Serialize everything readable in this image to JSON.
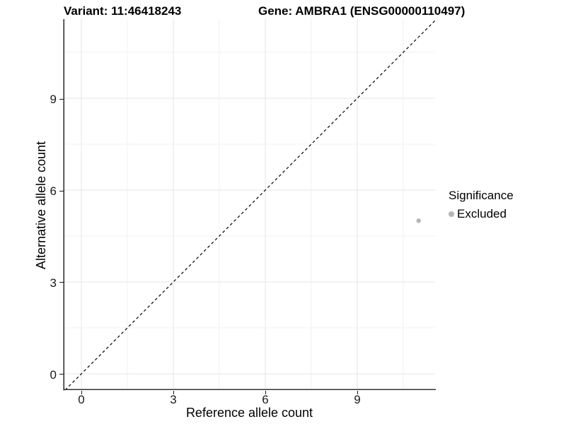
{
  "header": {
    "variant_title": "Variant: 11:46418243",
    "gene_title": "Gene: AMBRA1 (ENSG00000110497)"
  },
  "chart_data": {
    "type": "scatter",
    "xlabel": "Reference allele count",
    "ylabel": "Alternative allele count",
    "xlim": [
      -0.577,
      11.538
    ],
    "ylim": [
      -0.531,
      11.585
    ],
    "x_ticks": [
      0,
      3,
      6,
      9
    ],
    "y_ticks": [
      0,
      3,
      6,
      9
    ],
    "x_minor_ticks": [
      1.5,
      4.5,
      7.5,
      10.5
    ],
    "y_minor_ticks": [
      1.5,
      4.5,
      7.5,
      10.5
    ],
    "grid": "major+minor",
    "series": [
      {
        "name": "Excluded",
        "marker": "circle",
        "color": "#b5b5b5",
        "points": [
          {
            "x": 11,
            "y": 5
          }
        ]
      }
    ],
    "reference_line": {
      "equation": "y = x",
      "style": "dashed",
      "color": "#000000"
    },
    "legend": {
      "title": "Significance",
      "position": "right",
      "entries": [
        {
          "label": "Excluded",
          "color": "#b5b5b5",
          "marker": "circle"
        }
      ]
    }
  },
  "style_colors": {
    "background": "#ffffff",
    "grid_major": "#e4e4e4",
    "grid_minor": "#f1f1f1",
    "axis_line": "#333333",
    "tick_text": "#1a1a1a"
  }
}
